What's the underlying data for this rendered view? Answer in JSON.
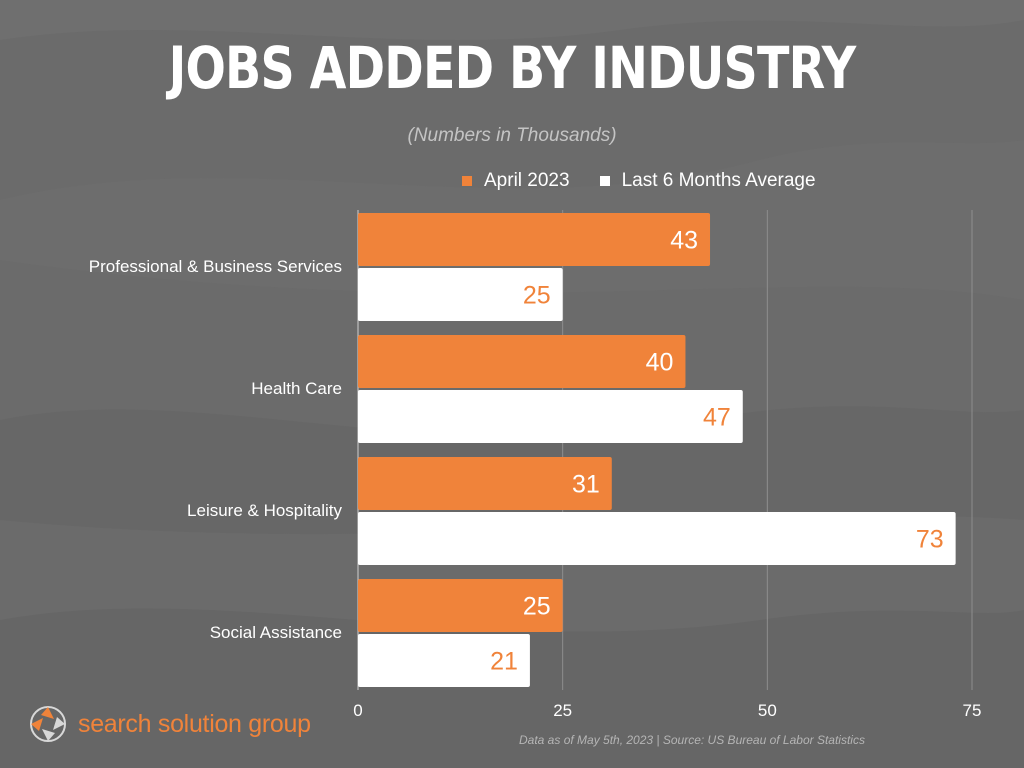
{
  "title": "JOBS ADDED BY INDUSTRY",
  "subtitle": "(Numbers in Thousands)",
  "source": "Data as of May 5th, 2023 | Source: US Bureau of Labor Statistics",
  "logo_text": "search solution group",
  "colors": {
    "april": "#f0833a",
    "average": "#ffffff",
    "background": "#6b6b6b",
    "label_on_white": "#f0833a"
  },
  "chart_data": {
    "type": "bar",
    "orientation": "horizontal",
    "categories": [
      "Professional & Business Services",
      "Health Care",
      "Leisure & Hospitality",
      "Social Assistance"
    ],
    "series": [
      {
        "name": "April 2023",
        "values": [
          43,
          40,
          31,
          25
        ]
      },
      {
        "name": "Last 6 Months Average",
        "values": [
          25,
          47,
          73,
          21
        ]
      }
    ],
    "xlim": [
      0,
      75
    ],
    "xticks": [
      "0",
      "25",
      "50",
      "75"
    ],
    "grid": true,
    "legend": "top"
  }
}
